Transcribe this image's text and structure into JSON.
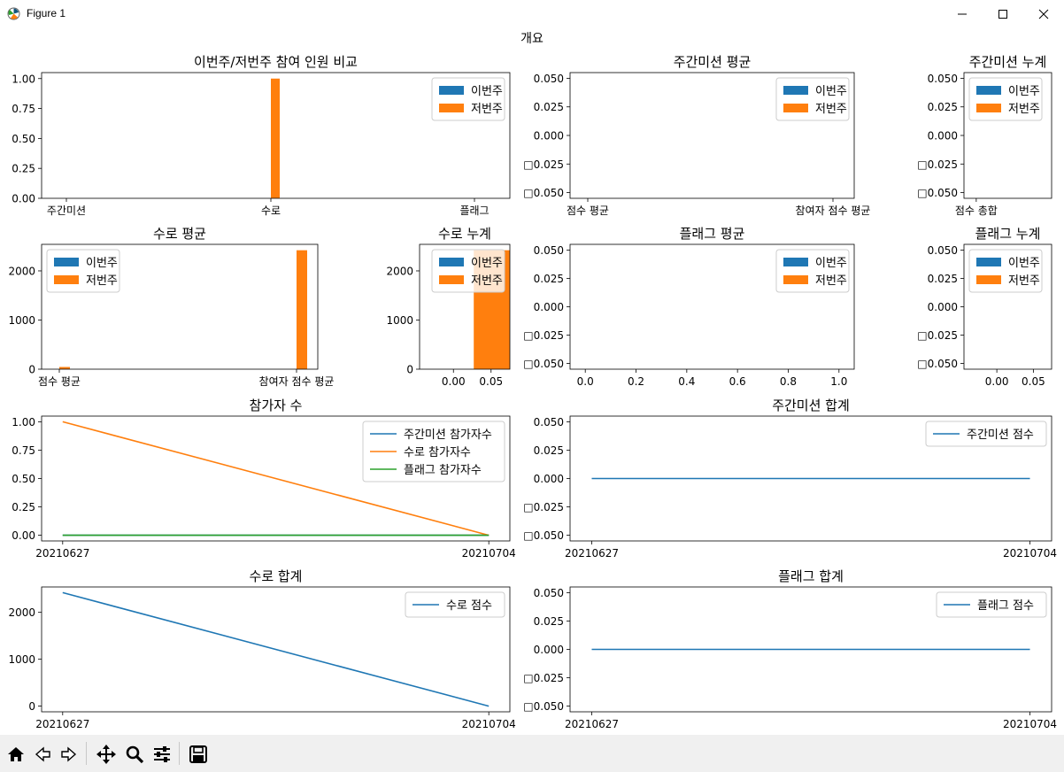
{
  "window": {
    "title": "Figure 1"
  },
  "figure": {
    "suptitle": "개요"
  },
  "toolbar": {
    "items": [
      "home-icon",
      "back-icon",
      "forward-icon",
      "pan-icon",
      "zoom-icon",
      "configure-icon",
      "save-icon"
    ]
  },
  "colors": {
    "C0": "#1f77b4",
    "C1": "#ff7f0e",
    "C2": "#2ca02c"
  },
  "chart_data": [
    {
      "id": "bar-compare",
      "type": "bar",
      "title": "이번주/저번주 참여 인원 비교",
      "categories": [
        "주간미션",
        "수로",
        "플래그"
      ],
      "series": [
        {
          "name": "이번주",
          "values": [
            0,
            0,
            0
          ]
        },
        {
          "name": "저번주",
          "values": [
            0,
            1,
            0
          ]
        }
      ],
      "yticks": [
        "0.00",
        "0.25",
        "0.50",
        "0.75",
        "1.00"
      ],
      "ylim": [
        0,
        1.05
      ],
      "legend": "upper right"
    },
    {
      "id": "bar-weekly-avg",
      "type": "bar",
      "title": "주간미션 평균",
      "categories": [
        "점수 평균",
        "참여자 점수 평균"
      ],
      "series": [
        {
          "name": "이번주",
          "values": [
            0,
            0
          ]
        },
        {
          "name": "저번주",
          "values": [
            0,
            0
          ]
        }
      ],
      "yticks": [
        "0.050",
        "0.025",
        "0.000",
        "□0.025",
        "□0.050"
      ],
      "ylim": [
        -0.055,
        0.055
      ],
      "legend": "upper right"
    },
    {
      "id": "bar-weekly-total",
      "type": "bar",
      "title": "주간미션 누계",
      "categories": [
        "점수 총합"
      ],
      "series": [
        {
          "name": "이번주",
          "values": [
            0
          ]
        },
        {
          "name": "저번주",
          "values": [
            0
          ]
        }
      ],
      "yticks": [
        "0.050",
        "0.025",
        "0.000",
        "□0.025",
        "□0.050"
      ],
      "ylim": [
        -0.055,
        0.055
      ],
      "legend": "upper left"
    },
    {
      "id": "bar-suro-avg",
      "type": "bar",
      "title": "수로 평균",
      "categories": [
        "점수 평균",
        "참여자 점수 평균"
      ],
      "series": [
        {
          "name": "이번주",
          "values": [
            0,
            0
          ]
        },
        {
          "name": "저번주",
          "values": [
            45,
            2420
          ]
        }
      ],
      "yticks": [
        "0",
        "1000",
        "2000"
      ],
      "ylim": [
        0,
        2540
      ],
      "legend": "upper left"
    },
    {
      "id": "bar-suro-total",
      "type": "bar",
      "title": "수로 누계",
      "series": [
        {
          "name": "이번주",
          "values": [
            0
          ]
        },
        {
          "name": "저번주",
          "values": [
            2420
          ]
        }
      ],
      "xticks": [
        "0.00",
        "0.05"
      ],
      "xlim": [
        -0.045,
        0.075
      ],
      "yticks": [
        "0",
        "1000",
        "2000"
      ],
      "ylim": [
        0,
        2540
      ],
      "legend": "upper right"
    },
    {
      "id": "bar-flag-avg",
      "type": "bar",
      "title": "플래그 평균",
      "series": [
        {
          "name": "이번주",
          "values": []
        },
        {
          "name": "저번주",
          "values": []
        }
      ],
      "xticks": [
        "0.0",
        "0.2",
        "0.4",
        "0.6",
        "0.8",
        "1.0"
      ],
      "xlim": [
        -0.06,
        1.06
      ],
      "yticks": [
        "0.050",
        "0.025",
        "0.000",
        "□0.025",
        "□0.050"
      ],
      "ylim": [
        -0.055,
        0.055
      ],
      "legend": "upper right"
    },
    {
      "id": "bar-flag-total",
      "type": "bar",
      "title": "플래그 누계",
      "series": [
        {
          "name": "이번주",
          "values": []
        },
        {
          "name": "저번주",
          "values": []
        }
      ],
      "xticks": [
        "0.00",
        "0.05"
      ],
      "xlim": [
        -0.045,
        0.075
      ],
      "yticks": [
        "0.050",
        "0.025",
        "0.000",
        "□0.025",
        "□0.050"
      ],
      "ylim": [
        -0.055,
        0.055
      ],
      "legend": "upper left"
    },
    {
      "id": "line-participants",
      "type": "line",
      "title": "참가자 수",
      "x": [
        "20210627",
        "20210704"
      ],
      "series": [
        {
          "name": "주간미션 참가자수",
          "values": [
            0,
            0
          ]
        },
        {
          "name": "수로 참가자수",
          "values": [
            1,
            0
          ]
        },
        {
          "name": "플래그 참가자수",
          "values": [
            0,
            0
          ]
        }
      ],
      "yticks": [
        "0.00",
        "0.25",
        "0.50",
        "0.75",
        "1.00"
      ],
      "ylim": [
        -0.05,
        1.05
      ],
      "legend": "upper right"
    },
    {
      "id": "line-weekly-sum",
      "type": "line",
      "title": "주간미션 합계",
      "x": [
        "20210627",
        "20210704"
      ],
      "series": [
        {
          "name": "주간미션 점수",
          "values": [
            0,
            0
          ]
        }
      ],
      "yticks": [
        "0.050",
        "0.025",
        "0.000",
        "□0.025",
        "□0.050"
      ],
      "ylim": [
        -0.055,
        0.055
      ],
      "legend": "upper right"
    },
    {
      "id": "line-suro-sum",
      "type": "line",
      "title": "수로 합계",
      "x": [
        "20210627",
        "20210704"
      ],
      "series": [
        {
          "name": "수로 점수",
          "values": [
            2420,
            0
          ]
        }
      ],
      "yticks": [
        "0",
        "1000",
        "2000"
      ],
      "ylim": [
        -121,
        2541
      ],
      "legend": "upper right"
    },
    {
      "id": "line-flag-sum",
      "type": "line",
      "title": "플래그 합계",
      "x": [
        "20210627",
        "20210704"
      ],
      "series": [
        {
          "name": "플래그 점수",
          "values": [
            0,
            0
          ]
        }
      ],
      "yticks": [
        "0.050",
        "0.025",
        "0.000",
        "□0.025",
        "□0.050"
      ],
      "ylim": [
        -0.055,
        0.055
      ],
      "legend": "upper right"
    }
  ]
}
